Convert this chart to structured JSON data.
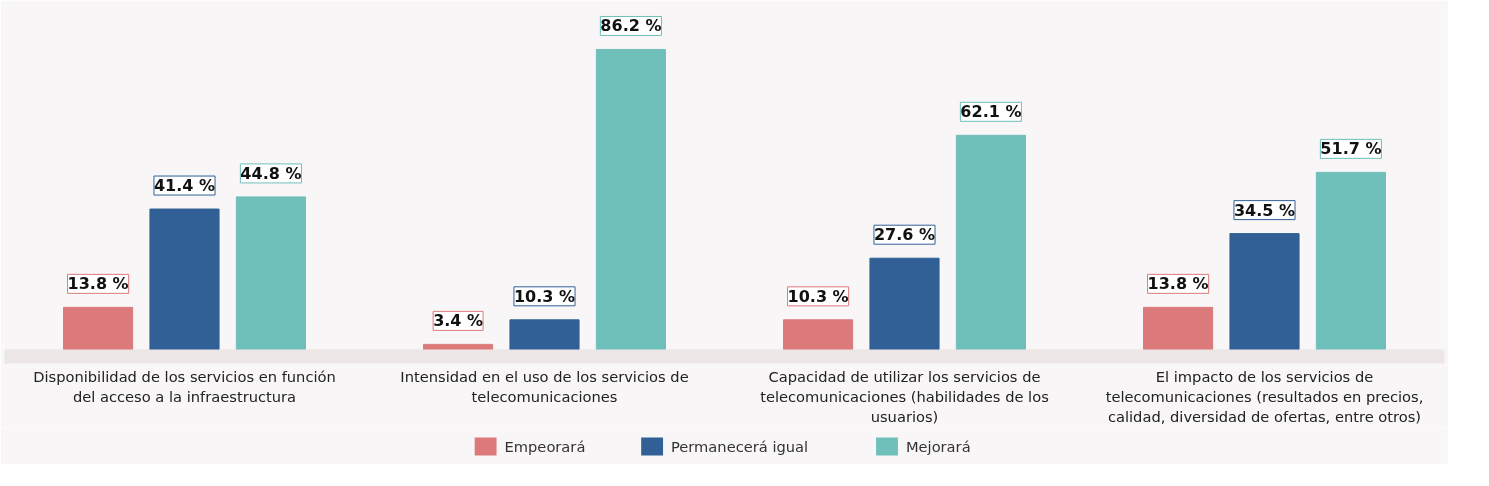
{
  "chart_data": {
    "type": "bar",
    "categories": [
      "Disponibilidad de los servicios en función del acceso a la infraestructura",
      "Intensidad en el uso de los servicios de telecomunicaciones",
      "Capacidad de utilizar los servicios de telecomunicaciones (habilidades de los usuarios)",
      "El impacto de los servicios de telecomunicaciones (resultados en precios, calidad, diversidad de ofertas, entre otros)"
    ],
    "series": [
      {
        "name": "Empeorará",
        "color": "#dc7a7b",
        "values": [
          13.8,
          3.4,
          10.3,
          13.8
        ],
        "value_labels": [
          "13.8 %",
          "3.4 %",
          "10.3 %",
          "13.8 %"
        ]
      },
      {
        "name": "Permanecerá igual",
        "color": "#306095",
        "values": [
          41.4,
          10.3,
          27.6,
          34.5
        ],
        "value_labels": [
          "41.4 %",
          "10.3 %",
          "27.6 %",
          "34.5 %"
        ]
      },
      {
        "name": "Mejorará",
        "color": "#6fbfbb",
        "values": [
          44.8,
          86.2,
          62.1,
          51.7
        ],
        "value_labels": [
          "44.8 %",
          "86.2 %",
          "62.1 %",
          "51.7 %"
        ]
      }
    ],
    "legend": "bottom",
    "grid": false,
    "relative": false
  }
}
